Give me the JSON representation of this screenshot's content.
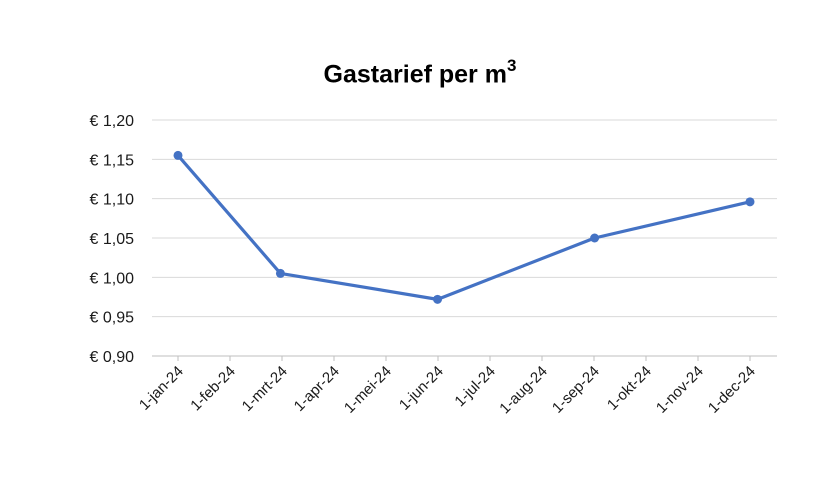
{
  "chart_data": {
    "type": "line",
    "title": "Gastarief per m",
    "title_superscript": "3",
    "xlabel": "",
    "ylabel": "",
    "x_ticks": [
      "1-jan-24",
      "1-feb-24",
      "1-mrt-24",
      "1-apr-24",
      "1-mei-24",
      "1-jun-24",
      "1-jul-24",
      "1-aug-24",
      "1-sep-24",
      "1-okt-24",
      "1-nov-24",
      "1-dec-24"
    ],
    "y_ticks": [
      "€ 0,90",
      "€ 0,95",
      "€ 1,00",
      "€ 1,05",
      "€ 1,10",
      "€ 1,15",
      "€ 1,20"
    ],
    "ylim": [
      0.9,
      1.2
    ],
    "xlim": [
      "2024-01-01",
      "2024-12-01"
    ],
    "grid": true,
    "color": "#4472C4",
    "series": [
      {
        "points": [
          {
            "x": "2024-01-01",
            "y": 1.155
          },
          {
            "x": "2024-03-01",
            "y": 1.005
          },
          {
            "x": "2024-06-01",
            "y": 0.972
          },
          {
            "x": "2024-09-01",
            "y": 1.05
          },
          {
            "x": "2024-12-01",
            "y": 1.096
          }
        ]
      }
    ]
  }
}
